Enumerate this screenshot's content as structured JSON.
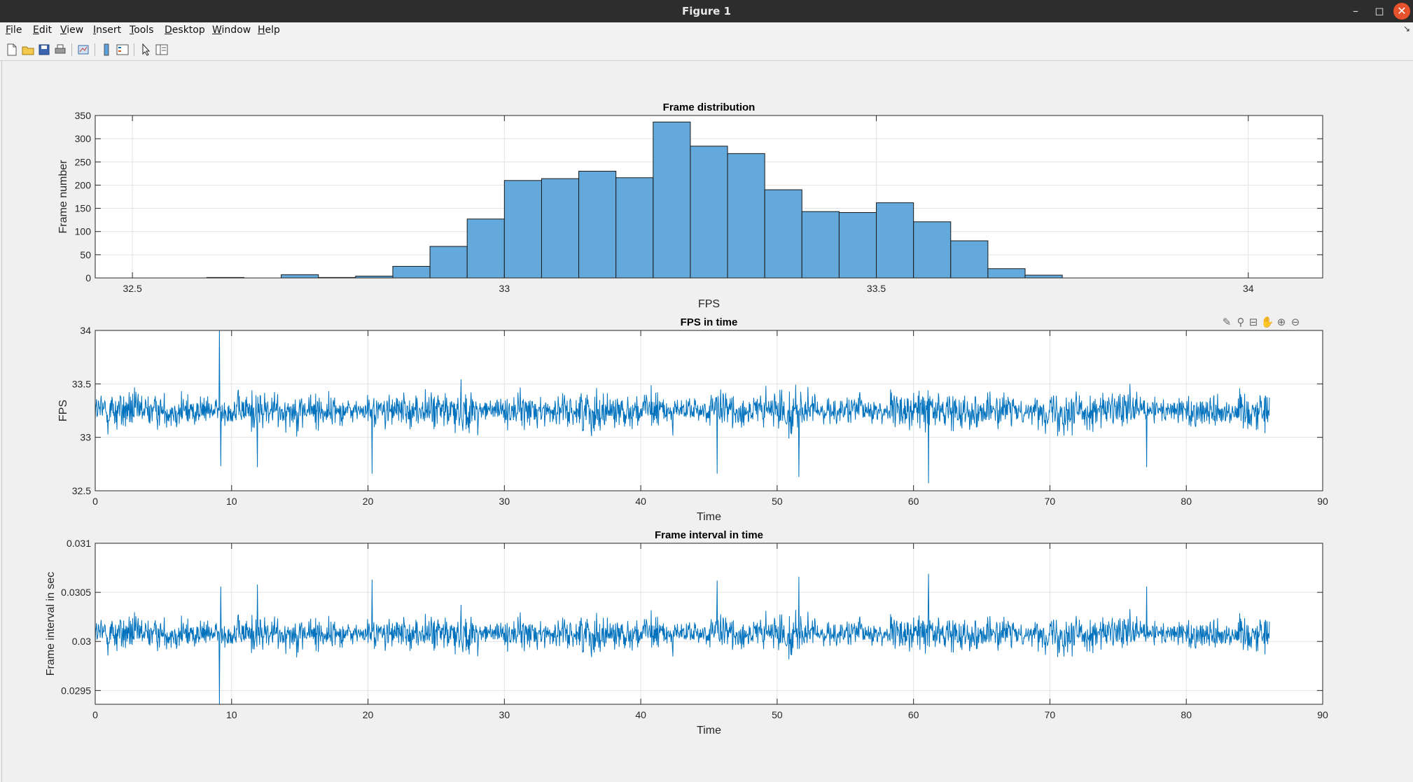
{
  "window": {
    "title": "Figure 1",
    "minimize_icon": "minimize-icon",
    "maximize_icon": "maximize-icon",
    "close_icon": "close-icon"
  },
  "menu": [
    {
      "label": "File",
      "u": "F"
    },
    {
      "label": "Edit",
      "u": "E"
    },
    {
      "label": "View",
      "u": "V"
    },
    {
      "label": "Insert",
      "u": "I"
    },
    {
      "label": "Tools",
      "u": "T"
    },
    {
      "label": "Desktop",
      "u": "D"
    },
    {
      "label": "Window",
      "u": "W"
    },
    {
      "label": "Help",
      "u": "H"
    }
  ],
  "toolbar": [
    "new-figure-icon",
    "open-file-icon",
    "save-icon",
    "print-icon",
    "link-plot-icon",
    "insert-colorbar-icon",
    "insert-legend-icon",
    "select-arrow-icon",
    "property-inspector-icon"
  ],
  "axes_toolbar": [
    "brush-icon",
    "data-tips-icon",
    "pan-icon",
    "zoom-in-icon",
    "zoom-out-icon",
    "home-icon"
  ],
  "chart_data": [
    {
      "type": "bar",
      "title": "Frame distribution",
      "xlabel": "FPS",
      "ylabel": "Frame number",
      "xlim": [
        32.45,
        34.1
      ],
      "ylim": [
        0,
        350
      ],
      "xticks": [
        "32.5",
        "33",
        "33.5",
        "34"
      ],
      "yticks": [
        "0",
        "50",
        "100",
        "150",
        "200",
        "250",
        "300",
        "350"
      ],
      "bin_edges": [
        32.45,
        32.5,
        32.55,
        32.6,
        32.65,
        32.7,
        32.75,
        32.8,
        32.85,
        32.9,
        32.95,
        33.0,
        33.05,
        33.1,
        33.15,
        33.2,
        33.25,
        33.3,
        33.35,
        33.4,
        33.45,
        33.5,
        33.55,
        33.6,
        33.65,
        33.7,
        33.75,
        33.8
      ],
      "values": [
        0,
        0,
        0,
        1,
        0,
        7,
        1,
        4,
        25,
        68,
        127,
        210,
        214,
        230,
        216,
        336,
        284,
        268,
        190,
        143,
        141,
        162,
        121,
        80,
        20,
        6,
        0
      ],
      "color": "#64a9db",
      "grid": true
    },
    {
      "type": "line",
      "title": "FPS in time",
      "xlabel": "Time",
      "ylabel": "FPS",
      "xlim": [
        0,
        90
      ],
      "ylim": [
        32.5,
        34
      ],
      "xticks": [
        "0",
        "10",
        "20",
        "30",
        "40",
        "50",
        "60",
        "70",
        "80",
        "90"
      ],
      "yticks": [
        "32.5",
        "33",
        "33.5",
        "34"
      ],
      "duration": 86.1,
      "mean": 33.25,
      "typical_range": [
        32.9,
        33.6
      ],
      "extremes": [
        {
          "x": 9.1,
          "y": 34.05
        },
        {
          "x": 9.2,
          "y": 32.73
        },
        {
          "x": 11.9,
          "y": 32.72
        },
        {
          "x": 20.3,
          "y": 32.66
        },
        {
          "x": 45.6,
          "y": 32.66
        },
        {
          "x": 51.6,
          "y": 32.63
        },
        {
          "x": 61.1,
          "y": 32.57
        },
        {
          "x": 77.1,
          "y": 32.72
        }
      ],
      "color": "#0072bd",
      "grid": true
    },
    {
      "type": "line",
      "title": "Frame interval in time",
      "xlabel": "Time",
      "ylabel": "Frame interval in sec",
      "xlim": [
        0,
        90
      ],
      "ylim": [
        0.02936,
        0.031
      ],
      "xticks": [
        "0",
        "10",
        "20",
        "30",
        "40",
        "50",
        "60",
        "70",
        "80",
        "90"
      ],
      "yticks": [
        "0.0295",
        "0.03",
        "0.0305",
        "0.031"
      ],
      "duration": 86.1,
      "mean": 0.03008,
      "typical_range": [
        0.02975,
        0.03045
      ],
      "extremes": [
        {
          "x": 9.1,
          "y": 0.02935
        },
        {
          "x": 9.2,
          "y": 0.03056
        },
        {
          "x": 11.9,
          "y": 0.03058
        },
        {
          "x": 20.3,
          "y": 0.03063
        },
        {
          "x": 45.6,
          "y": 0.03062
        },
        {
          "x": 51.6,
          "y": 0.03066
        },
        {
          "x": 61.1,
          "y": 0.03069
        },
        {
          "x": 77.1,
          "y": 0.03056
        }
      ],
      "color": "#0072bd",
      "grid": true
    }
  ]
}
